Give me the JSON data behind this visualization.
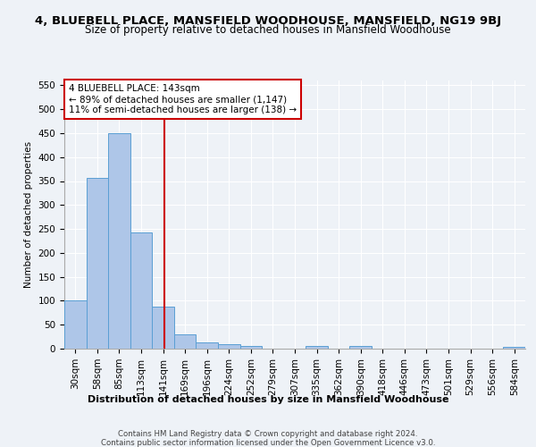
{
  "title1": "4, BLUEBELL PLACE, MANSFIELD WOODHOUSE, MANSFIELD, NG19 9BJ",
  "title2": "Size of property relative to detached houses in Mansfield Woodhouse",
  "xlabel": "Distribution of detached houses by size in Mansfield Woodhouse",
  "ylabel": "Number of detached properties",
  "footer1": "Contains HM Land Registry data © Crown copyright and database right 2024.",
  "footer2": "Contains public sector information licensed under the Open Government Licence v3.0.",
  "bar_labels": [
    "30sqm",
    "58sqm",
    "85sqm",
    "113sqm",
    "141sqm",
    "169sqm",
    "196sqm",
    "224sqm",
    "252sqm",
    "279sqm",
    "307sqm",
    "335sqm",
    "362sqm",
    "390sqm",
    "418sqm",
    "446sqm",
    "473sqm",
    "501sqm",
    "529sqm",
    "556sqm",
    "584sqm"
  ],
  "bar_values": [
    101,
    356,
    449,
    243,
    88,
    30,
    13,
    9,
    5,
    0,
    0,
    5,
    0,
    5,
    0,
    0,
    0,
    0,
    0,
    0,
    4
  ],
  "bar_color": "#aec6e8",
  "bar_edge_color": "#5a9fd4",
  "vline_x_idx": 4,
  "vline_color": "#cc0000",
  "annotation_line1": "4 BLUEBELL PLACE: 143sqm",
  "annotation_line2": "← 89% of detached houses are smaller (1,147)",
  "annotation_line3": "11% of semi-detached houses are larger (138) →",
  "annotation_box_color": "#cc0000",
  "annotation_bg": "#ffffff",
  "ylim": [
    0,
    560
  ],
  "yticks": [
    0,
    50,
    100,
    150,
    200,
    250,
    300,
    350,
    400,
    450,
    500,
    550
  ],
  "bg_color": "#eef2f7",
  "plot_bg": "#eef2f7",
  "grid_color": "#ffffff",
  "title1_fontsize": 9.5,
  "title2_fontsize": 8.5,
  "axis_fontsize": 7.5,
  "annotation_fontsize": 7.5
}
